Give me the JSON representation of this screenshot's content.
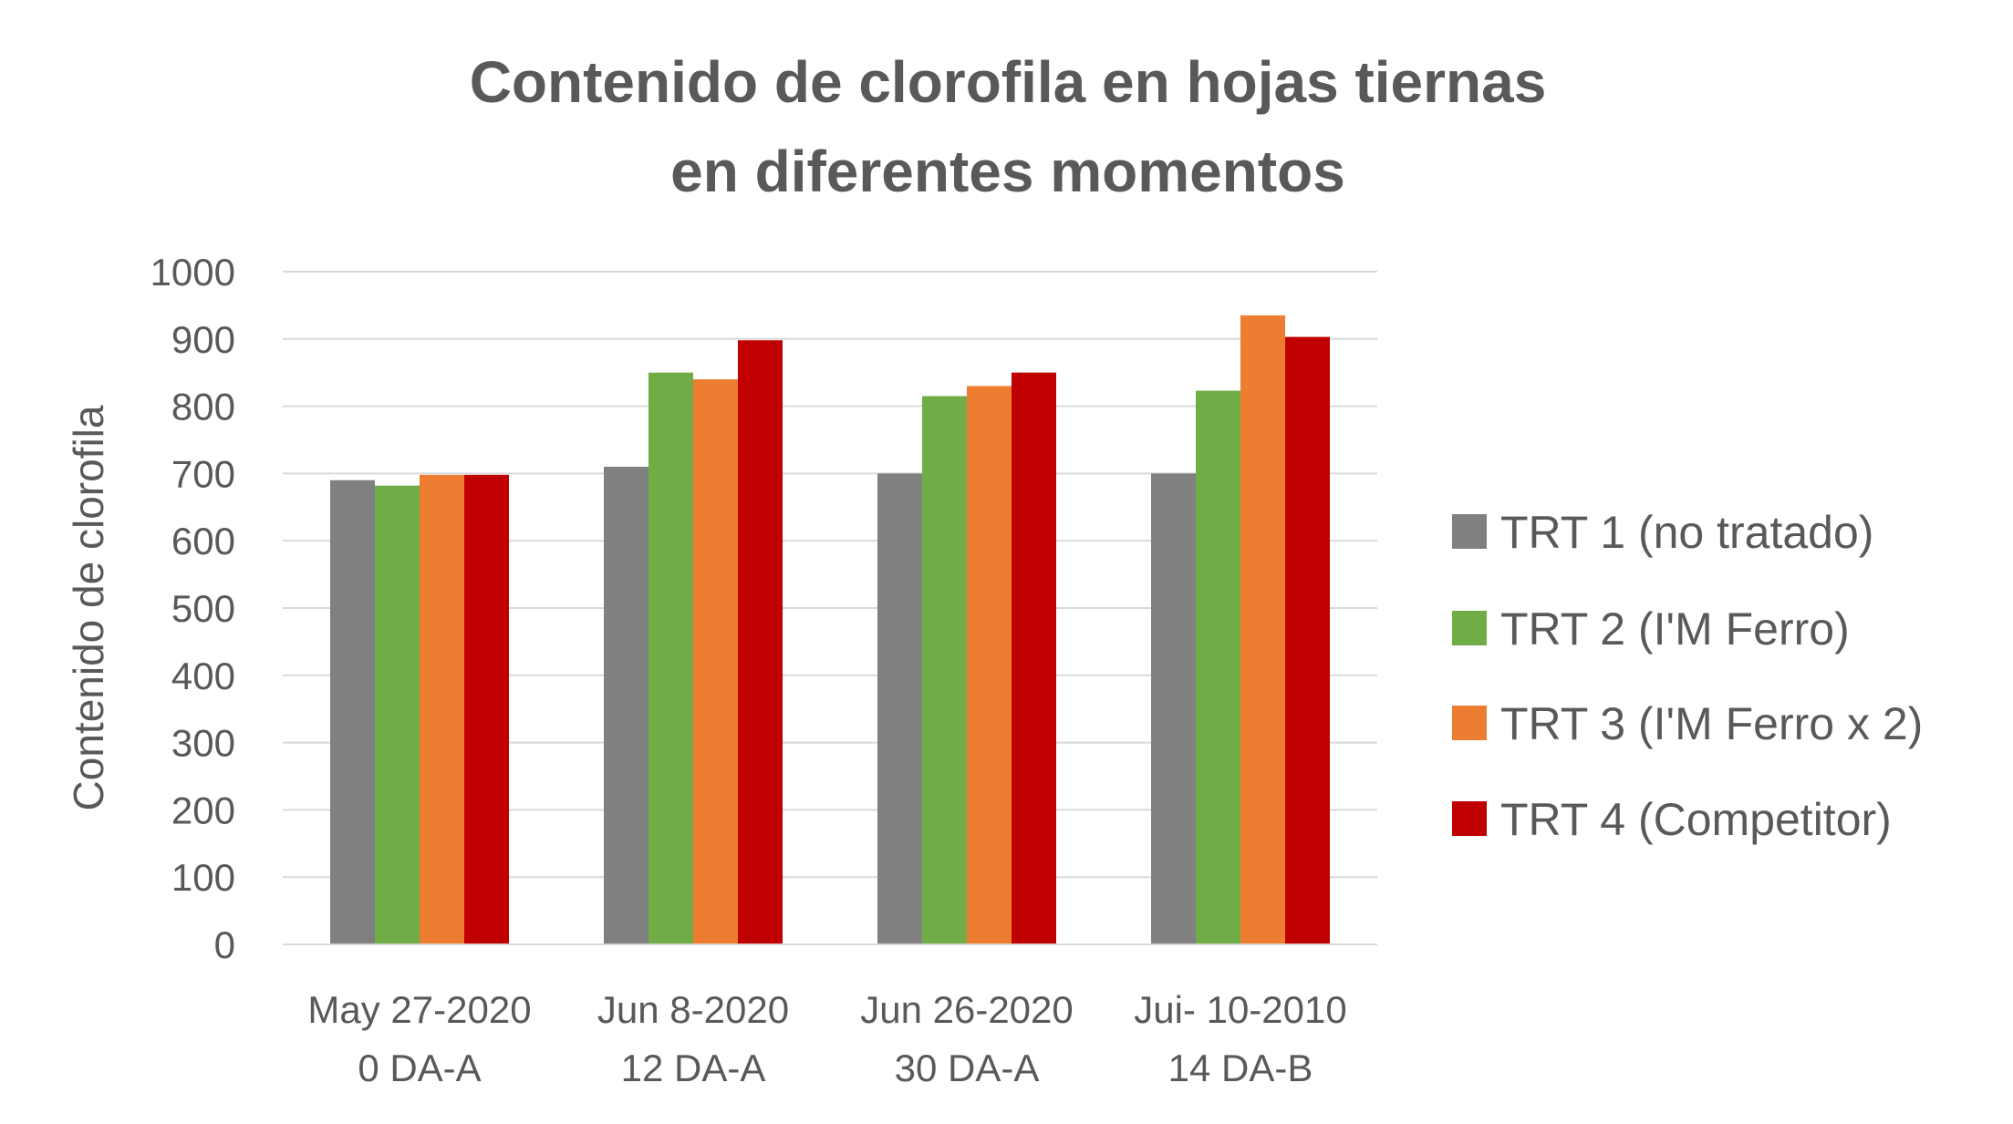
{
  "chart_data": {
    "type": "bar",
    "title_lines": [
      "Contenido de clorofila en hojas tiernas",
      "en diferentes momentos"
    ],
    "xlabel": "",
    "ylabel": "Contenido de clorofila",
    "ylim": [
      0,
      1000
    ],
    "yticks": [
      0,
      100,
      200,
      300,
      400,
      500,
      600,
      700,
      800,
      900,
      1000
    ],
    "grid": true,
    "legend_position": "right",
    "categories": [
      [
        "May 27-2020",
        "0 DA-A"
      ],
      [
        "Jun 8-2020",
        "12 DA-A"
      ],
      [
        "Jun 26-2020",
        "30 DA-A"
      ],
      [
        "Jui- 10-2010",
        "14 DA-B"
      ]
    ],
    "series": [
      {
        "name": "TRT 1 (no tratado)",
        "color": "#808080",
        "values": [
          690,
          710,
          700,
          700
        ]
      },
      {
        "name": "TRT 2 (I'M Ferro)",
        "color": "#70AD47",
        "values": [
          682,
          850,
          815,
          823
        ]
      },
      {
        "name": "TRT 3 (I'M Ferro x 2)",
        "color": "#ED7D31",
        "values": [
          698,
          840,
          830,
          935
        ]
      },
      {
        "name": "TRT 4 (Competitor)",
        "color": "#C00000",
        "values": [
          698,
          898,
          850,
          903
        ]
      }
    ]
  }
}
